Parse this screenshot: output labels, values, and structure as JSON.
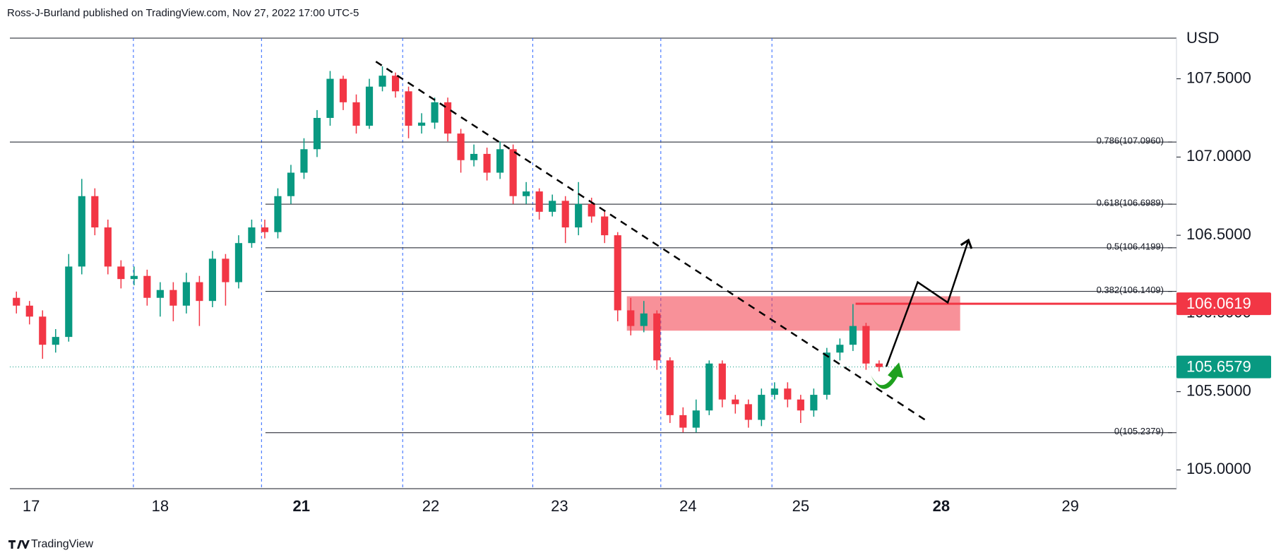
{
  "header": {
    "attribution": "Ross-J-Burland published on TradingView.com, Nov 27, 2022 17:00 UTC-5",
    "brand": "TradingView"
  },
  "chart_data": {
    "type": "candlestick",
    "currency": "USD",
    "up_color": "#089981",
    "down_color": "#f23645",
    "xlim": [
      0,
      178.5
    ],
    "ylim": [
      104.88,
      107.76
    ],
    "xticks": [
      {
        "value": 3.25,
        "label": "17"
      },
      {
        "value": 23,
        "label": "18"
      },
      {
        "value": 44.6,
        "label": "21"
      },
      {
        "value": 64.4,
        "label": "22"
      },
      {
        "value": 84.1,
        "label": "23"
      },
      {
        "value": 103.75,
        "label": "24"
      },
      {
        "value": 121,
        "label": "25"
      },
      {
        "value": 142.5,
        "label": "28"
      },
      {
        "value": 162.25,
        "label": "29"
      }
    ],
    "bold_xticks": [
      "21",
      "28"
    ],
    "yticks": [
      {
        "value": 105,
        "label": "105.0000"
      },
      {
        "value": 105.5,
        "label": "105.5000"
      },
      {
        "value": 106,
        "label": "106.0000"
      },
      {
        "value": 106.5,
        "label": "106.5000"
      },
      {
        "value": 107,
        "label": "107.0000"
      },
      {
        "value": 107.5,
        "label": "107.5000"
      }
    ],
    "session_lines": [
      18.9,
      38.5,
      60.1,
      80,
      99.6,
      116.6
    ],
    "x": [
      1,
      3,
      5,
      7,
      9,
      11,
      13,
      15,
      17,
      19,
      21,
      23,
      25,
      27,
      29,
      31,
      33,
      35,
      37,
      39,
      41,
      43,
      45,
      47,
      49,
      51,
      53,
      55,
      57,
      59,
      61,
      63,
      65,
      67,
      69,
      71,
      73,
      75,
      77,
      79,
      81,
      83,
      85,
      87,
      89,
      91,
      93,
      95,
      97,
      99,
      101,
      103,
      105,
      107,
      109,
      111,
      113,
      115,
      117,
      119,
      121,
      123,
      125,
      127,
      129,
      131,
      133
    ],
    "open": [
      106.1,
      106.05,
      105.98,
      105.8,
      105.85,
      106.3,
      106.75,
      106.55,
      106.3,
      106.22,
      106.24,
      106.1,
      106.15,
      106.05,
      106.2,
      106.08,
      106.35,
      106.2,
      106.45,
      106.55,
      106.52,
      106.75,
      106.9,
      107.05,
      107.25,
      107.5,
      107.35,
      107.2,
      107.45,
      107.52,
      107.42,
      107.2,
      107.22,
      107.35,
      107.15,
      106.98,
      107.02,
      106.9,
      107.05,
      106.75,
      106.78,
      106.65,
      106.72,
      106.55,
      106.7,
      106.62,
      106.5,
      106.02,
      105.92,
      106.0,
      105.7,
      105.35,
      105.27,
      105.38,
      105.68,
      105.45,
      105.42,
      105.32,
      105.48,
      105.52,
      105.45,
      105.38,
      105.48,
      105.75,
      105.8,
      105.92,
      105.68
    ],
    "high": [
      106.14,
      106.08,
      106.02,
      105.9,
      106.38,
      106.86,
      106.8,
      106.6,
      106.34,
      106.3,
      106.28,
      106.2,
      106.2,
      106.26,
      106.24,
      106.4,
      106.38,
      106.5,
      106.6,
      106.6,
      106.8,
      106.95,
      107.12,
      107.3,
      107.55,
      107.52,
      107.4,
      107.5,
      107.58,
      107.54,
      107.45,
      107.28,
      107.38,
      107.38,
      107.18,
      107.08,
      107.06,
      107.1,
      107.08,
      106.84,
      106.8,
      106.76,
      106.75,
      106.84,
      106.74,
      106.66,
      106.52,
      106.1,
      106.08,
      106.02,
      105.72,
      105.4,
      105.45,
      105.7,
      105.7,
      105.48,
      105.45,
      105.52,
      105.56,
      105.56,
      105.48,
      105.52,
      105.78,
      105.84,
      106.06,
      105.94,
      105.7
    ],
    "low": [
      106.0,
      105.93,
      105.71,
      105.75,
      105.82,
      106.25,
      106.5,
      106.25,
      106.16,
      106.18,
      106.05,
      105.98,
      105.95,
      106.0,
      105.92,
      106.04,
      106.05,
      106.16,
      106.42,
      106.48,
      106.48,
      106.7,
      106.86,
      107.0,
      107.2,
      107.3,
      107.15,
      107.18,
      107.42,
      107.38,
      107.12,
      107.15,
      107.18,
      107.1,
      106.9,
      106.94,
      106.85,
      106.86,
      106.7,
      106.7,
      106.6,
      106.62,
      106.45,
      106.5,
      106.58,
      106.45,
      105.95,
      105.86,
      105.88,
      105.64,
      105.3,
      105.24,
      105.24,
      105.35,
      105.4,
      105.36,
      105.27,
      105.28,
      105.45,
      105.4,
      105.3,
      105.34,
      105.45,
      105.7,
      105.76,
      105.64,
      105.63
    ],
    "close": [
      106.05,
      105.98,
      105.8,
      105.85,
      106.3,
      106.75,
      106.55,
      106.3,
      106.22,
      106.24,
      106.1,
      106.15,
      106.05,
      106.2,
      106.08,
      106.35,
      106.2,
      106.45,
      106.55,
      106.52,
      106.75,
      106.9,
      107.05,
      107.25,
      107.5,
      107.35,
      107.2,
      107.45,
      107.52,
      107.42,
      107.2,
      107.22,
      107.35,
      107.15,
      106.98,
      107.02,
      106.9,
      107.05,
      106.75,
      106.78,
      106.65,
      106.72,
      106.55,
      106.7,
      106.62,
      106.5,
      106.02,
      105.92,
      106.0,
      105.7,
      105.35,
      105.27,
      105.38,
      105.68,
      105.45,
      105.42,
      105.32,
      105.48,
      105.52,
      105.45,
      105.38,
      105.48,
      105.75,
      105.8,
      105.92,
      105.68,
      105.658
    ],
    "fib_levels": [
      {
        "value": 107.096,
        "label": "0.786(107.0960)",
        "start": 0
      },
      {
        "value": 106.6989,
        "label": "0.618(106.6989)",
        "start": 39.1
      },
      {
        "value": 106.4199,
        "label": "0.5(106.4199)",
        "start": 39.1
      },
      {
        "value": 106.1409,
        "label": "0.382(106.1409)",
        "start": 39.1
      },
      {
        "value": 105.2379,
        "label": "0(105.2379)",
        "start": 39.1
      }
    ],
    "zone": {
      "x": [
        94.4,
        145.4
      ],
      "y": [
        105.89,
        106.11
      ],
      "color": "#f23645"
    },
    "resistance": {
      "value": 106.0619,
      "label": "106.0619",
      "start": 129.4,
      "color": "#f23645"
    },
    "last_price": {
      "value": 105.6579,
      "label": "105.6579",
      "color": "#089981"
    },
    "trendline": {
      "x": [
        56,
        140.4
      ],
      "y": [
        107.61,
        105.31
      ]
    },
    "projection": {
      "x": [
        134.1,
        138.9,
        143.5,
        146.6
      ],
      "y": [
        105.66,
        106.2,
        106.07,
        106.46
      ]
    }
  }
}
